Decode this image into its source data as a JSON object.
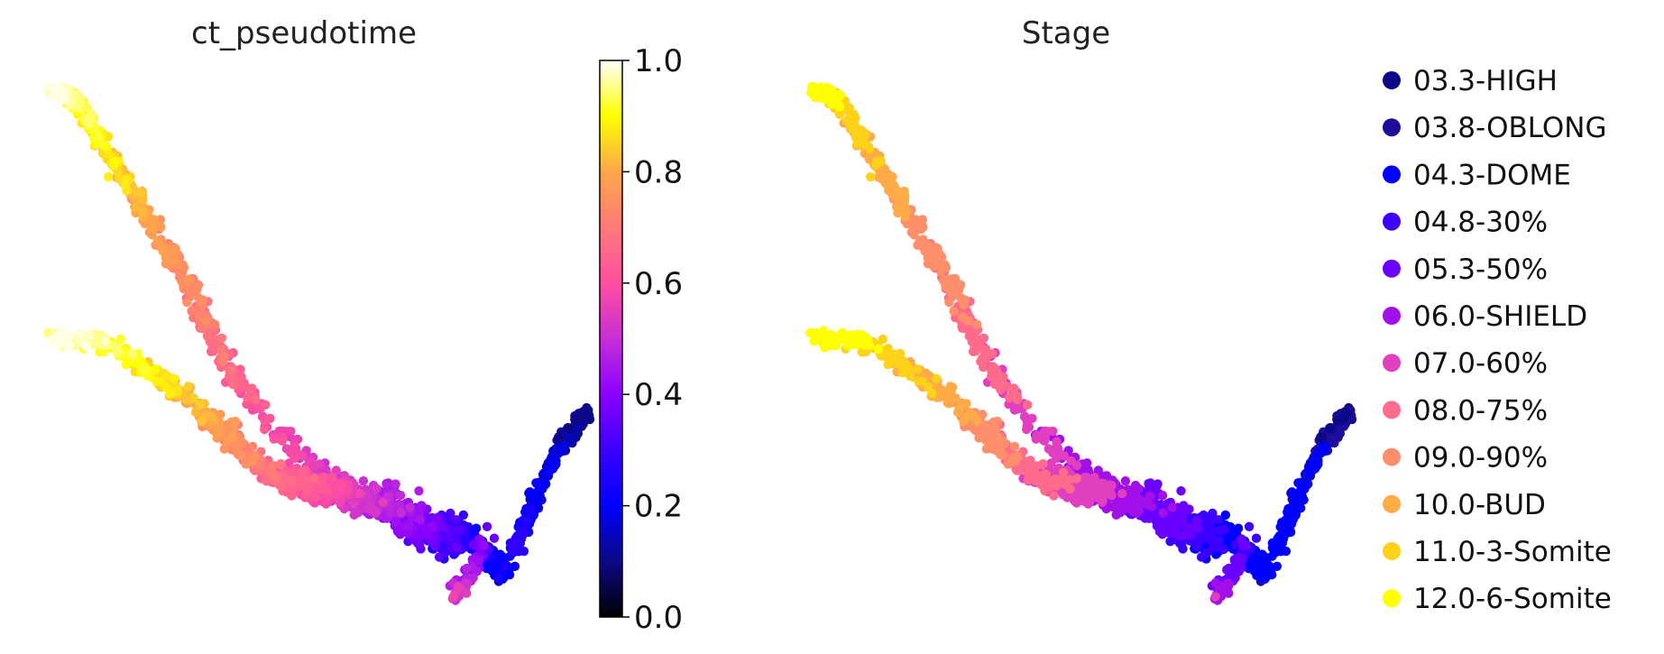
{
  "chart_data": [
    {
      "type": "scatter",
      "title": "ct_pseudotime",
      "colormap": "plasma",
      "colorbar": {
        "ticks": [
          "0.0",
          "0.2",
          "0.4",
          "0.6",
          "0.8",
          "1.0"
        ],
        "range": [
          0.0,
          1.0
        ]
      },
      "grid": false,
      "axes_visible": false,
      "description": "UMAP-like embedding; cells colored by pseudotime (0 at right tip, 1 at upper-left tips)"
    },
    {
      "type": "scatter",
      "title": "Stage",
      "legend_position": "right",
      "grid": false,
      "axes_visible": false,
      "categories": [
        {
          "label": "03.3-HIGH",
          "color": "#0d0887"
        },
        {
          "label": "03.8-OBLONG",
          "color": "#1f0c9c"
        },
        {
          "label": "04.3-DOME",
          "color": "#0000ff"
        },
        {
          "label": "04.8-30%",
          "color": "#3b00ff"
        },
        {
          "label": "05.3-50%",
          "color": "#6a00ff"
        },
        {
          "label": "06.0-SHIELD",
          "color": "#a20fe8"
        },
        {
          "label": "07.0-60%",
          "color": "#e040c0"
        },
        {
          "label": "08.0-75%",
          "color": "#ff6b8a"
        },
        {
          "label": "09.0-90%",
          "color": "#ff8f6b"
        },
        {
          "label": "10.0-BUD",
          "color": "#ffab47"
        },
        {
          "label": "11.0-3-Somite",
          "color": "#ffd21a"
        },
        {
          "label": "12.0-6-Somite",
          "color": "#ffff00"
        }
      ]
    }
  ]
}
